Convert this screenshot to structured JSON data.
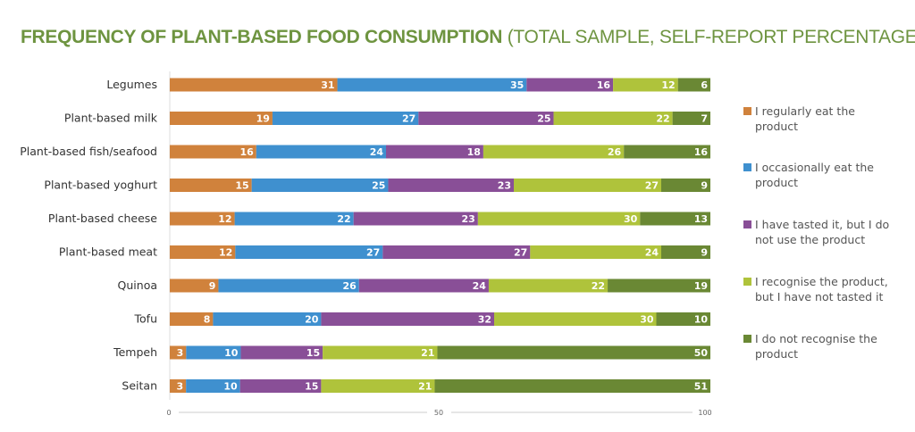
{
  "chart_data": {
    "type": "bar",
    "orientation": "horizontal",
    "stacked": true,
    "title": "FREQUENCY OF PLANT-BASED FOOD CONSUMPTION",
    "subtitle": "(TOTAL SAMPLE, SELF-REPORT PERCENTAGES)",
    "categories": [
      "Legumes",
      "Plant-based milk",
      "Plant-based fish/seafood",
      "Plant-based yoghurt",
      "Plant-based cheese",
      "Plant-based meat",
      "Quinoa",
      "Tofu",
      "Tempeh",
      "Seitan"
    ],
    "series": [
      {
        "name": "I regularly eat the product",
        "lines": [
          "I regularly eat the",
          "product"
        ],
        "color": "#D0823C",
        "values": [
          31,
          19,
          16,
          15,
          12,
          12,
          9,
          8,
          3,
          3
        ]
      },
      {
        "name": "I occasionally eat the product",
        "lines": [
          "I occasionally eat the",
          "product"
        ],
        "color": "#3F90CF",
        "values": [
          35,
          27,
          24,
          25,
          22,
          27,
          26,
          20,
          10,
          10
        ]
      },
      {
        "name": "I have tasted it, but I do not use the product",
        "lines": [
          "I have tasted it, but I do",
          "not use the product"
        ],
        "color": "#894F97",
        "values": [
          16,
          25,
          18,
          23,
          23,
          27,
          24,
          32,
          15,
          15
        ]
      },
      {
        "name": "I recognise the product, but I have not tasted it",
        "lines": [
          "I recognise the product,",
          "but I have not tasted it"
        ],
        "color": "#AFC33B",
        "values": [
          12,
          22,
          26,
          27,
          30,
          24,
          22,
          30,
          21,
          21
        ]
      },
      {
        "name": "I do not recognise the product",
        "lines": [
          "I do not recognise the",
          "product"
        ],
        "color": "#6A8834",
        "values": [
          6,
          7,
          16,
          9,
          13,
          9,
          19,
          10,
          50,
          51
        ]
      }
    ],
    "xlim": [
      0,
      100
    ],
    "xticks": [
      "0",
      "50",
      "100"
    ],
    "grid": false,
    "legend": "right",
    "data_labels": true
  }
}
